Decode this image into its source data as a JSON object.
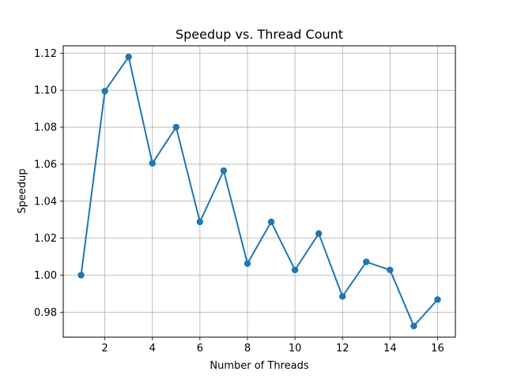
{
  "chart_data": {
    "type": "line",
    "title": "Speedup vs. Thread Count",
    "xlabel": "Number of Threads",
    "ylabel": "Speedup",
    "x": [
      1,
      2,
      3,
      4,
      5,
      6,
      7,
      8,
      9,
      10,
      11,
      12,
      13,
      14,
      15,
      16
    ],
    "series": [
      {
        "values": [
          1.0,
          1.0995,
          1.118,
          1.0605,
          1.08,
          1.0288,
          1.0565,
          1.0063,
          1.0288,
          1.0028,
          1.0225,
          0.9885,
          1.0072,
          1.0028,
          0.9725,
          0.9868
        ],
        "color": "#1f77b4",
        "marker": "circle"
      }
    ],
    "xlim": [
      0.25,
      16.75
    ],
    "ylim": [
      0.9665,
      1.124
    ],
    "xticks": [
      2,
      4,
      6,
      8,
      10,
      12,
      14,
      16
    ],
    "xtick_labels": [
      "2",
      "4",
      "6",
      "8",
      "10",
      "12",
      "14",
      "16"
    ],
    "yticks": [
      0.98,
      1.0,
      1.02,
      1.04,
      1.06,
      1.08,
      1.1,
      1.12
    ],
    "ytick_labels": [
      "0.98",
      "1.00",
      "1.02",
      "1.04",
      "1.06",
      "1.08",
      "1.10",
      "1.12"
    ],
    "grid": true,
    "legend": "none"
  }
}
